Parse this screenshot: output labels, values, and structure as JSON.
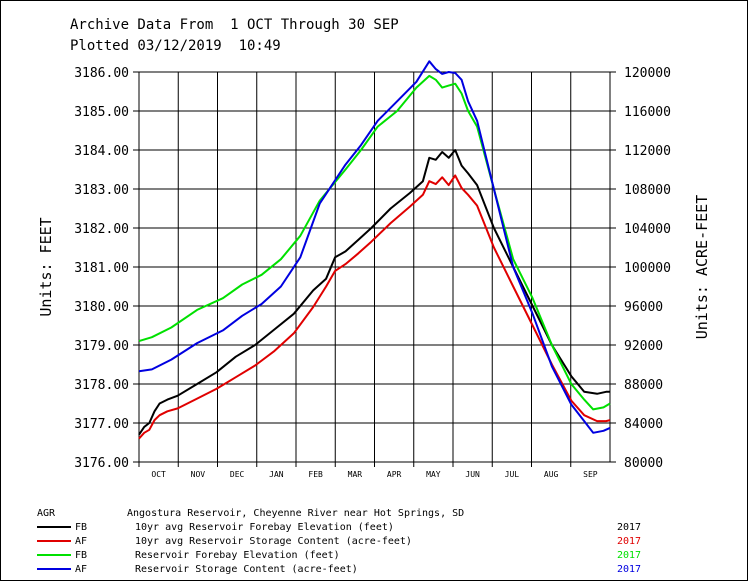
{
  "header": {
    "line1": "Archive Data From  1 OCT Through 30 SEP",
    "line2": "Plotted 03/12/2019  10:49"
  },
  "legend": {
    "agency": "AGR",
    "station": "Angostura Reservoir, Cheyenne River near Hot Springs, SD",
    "rows": [
      {
        "code": "FB",
        "label": "10yr avg Reservoir Forebay Elevation (feet)",
        "year": "2017",
        "color": "#000000"
      },
      {
        "code": "AF",
        "label": "10yr avg Reservoir Storage Content (acre-feet)",
        "year": "2017",
        "color": "#e00000"
      },
      {
        "code": "FB",
        "label": "Reservoir Forebay Elevation (feet)",
        "year": "2017",
        "color": "#00e000"
      },
      {
        "code": "AF",
        "label": "Reservoir Storage Content (acre-feet)",
        "year": "2017",
        "color": "#0000e0"
      }
    ]
  },
  "chart_data": {
    "type": "line",
    "title": "Archive Data From  1 OCT Through 30 SEP",
    "xlabel": "",
    "ylabel": "Units: FEET",
    "y2label": "Units: ACRE-FEET",
    "ylim": [
      3176.0,
      3186.0
    ],
    "y2lim": [
      80000,
      120000
    ],
    "yticks": [
      "3176.00",
      "3177.00",
      "3178.00",
      "3179.00",
      "3180.00",
      "3181.00",
      "3182.00",
      "3183.00",
      "3184.00",
      "3185.00",
      "3186.00"
    ],
    "y2ticks": [
      "80000",
      "84000",
      "88000",
      "92000",
      "96000",
      "100000",
      "104000",
      "108000",
      "112000",
      "116000",
      "120000"
    ],
    "categories": [
      "OCT",
      "NOV",
      "DEC",
      "JAN",
      "FEB",
      "MAR",
      "APR",
      "MAY",
      "JUN",
      "JUL",
      "AUG",
      "SEP"
    ],
    "x_unit": "day of water year (0 = 1 OCT, 365 = 30 SEP)",
    "xlim": [
      0,
      365
    ],
    "series": [
      {
        "name": "10yr avg Reservoir Forebay Elevation (feet)",
        "axis": "left",
        "color": "#000000",
        "x": [
          0,
          4,
          8,
          12,
          16,
          22,
          30,
          45,
          60,
          75,
          90,
          105,
          120,
          135,
          145,
          152,
          160,
          170,
          180,
          195,
          210,
          220,
          225,
          230,
          235,
          240,
          245,
          250,
          255,
          262,
          275,
          290,
          305,
          320,
          335,
          345,
          355,
          362,
          365
        ],
        "y": [
          3176.7,
          3176.9,
          3177.0,
          3177.3,
          3177.5,
          3177.6,
          3177.7,
          3178.0,
          3178.3,
          3178.7,
          3179.0,
          3179.4,
          3179.8,
          3180.4,
          3180.7,
          3181.25,
          3181.4,
          3181.7,
          3182.0,
          3182.5,
          3182.9,
          3183.2,
          3183.8,
          3183.75,
          3183.95,
          3183.8,
          3184.0,
          3183.6,
          3183.4,
          3183.1,
          3182.0,
          3181.0,
          3180.0,
          3179.0,
          3178.2,
          3177.8,
          3177.75,
          3177.8,
          3177.8
        ]
      },
      {
        "name": "10yr avg Reservoir Storage Content (acre-feet)",
        "axis": "right",
        "color": "#e00000",
        "x": [
          0,
          4,
          8,
          12,
          16,
          22,
          30,
          45,
          60,
          75,
          90,
          105,
          120,
          135,
          145,
          152,
          160,
          170,
          180,
          195,
          210,
          220,
          225,
          230,
          235,
          240,
          245,
          250,
          255,
          262,
          275,
          290,
          305,
          320,
          335,
          345,
          355,
          362,
          365
        ],
        "y": [
          82400,
          83000,
          83300,
          84300,
          84800,
          85200,
          85500,
          86500,
          87500,
          88700,
          89900,
          91400,
          93200,
          95900,
          98000,
          99600,
          100300,
          101400,
          102600,
          104500,
          106200,
          107400,
          108800,
          108500,
          109200,
          108400,
          109400,
          108100,
          107400,
          106300,
          102000,
          98000,
          94000,
          90000,
          86300,
          84800,
          84200,
          84200,
          84300
        ]
      },
      {
        "name": "Reservoir Forebay Elevation (feet)",
        "axis": "left",
        "color": "#00e000",
        "x": [
          0,
          10,
          25,
          45,
          65,
          80,
          95,
          110,
          125,
          140,
          150,
          160,
          172,
          185,
          200,
          215,
          225,
          230,
          235,
          240,
          245,
          250,
          255,
          262,
          275,
          290,
          305,
          320,
          335,
          345,
          352,
          360,
          365
        ],
        "y": [
          3179.1,
          3179.2,
          3179.45,
          3179.9,
          3180.2,
          3180.55,
          3180.8,
          3181.2,
          3181.8,
          3182.7,
          3183.1,
          3183.5,
          3184.0,
          3184.6,
          3185.0,
          3185.6,
          3185.9,
          3185.8,
          3185.6,
          3185.65,
          3185.7,
          3185.45,
          3185.0,
          3184.6,
          3183.0,
          3181.2,
          3180.2,
          3179.0,
          3178.0,
          3177.6,
          3177.35,
          3177.4,
          3177.5
        ]
      },
      {
        "name": "Reservoir Storage Content (acre-feet)",
        "axis": "right",
        "color": "#0000e0",
        "x": [
          0,
          10,
          25,
          45,
          65,
          80,
          95,
          110,
          125,
          140,
          150,
          160,
          172,
          185,
          200,
          215,
          225,
          230,
          235,
          240,
          245,
          250,
          255,
          262,
          275,
          290,
          305,
          320,
          335,
          345,
          352,
          360,
          365
        ],
        "y": [
          89300,
          89500,
          90500,
          92200,
          93500,
          95000,
          96200,
          98000,
          101000,
          106500,
          108500,
          110500,
          112500,
          115000,
          117000,
          119000,
          121100,
          120300,
          119800,
          120000,
          119900,
          119200,
          117000,
          115000,
          108000,
          100000,
          95200,
          89800,
          85900,
          84200,
          83000,
          83200,
          83500
        ]
      }
    ]
  }
}
